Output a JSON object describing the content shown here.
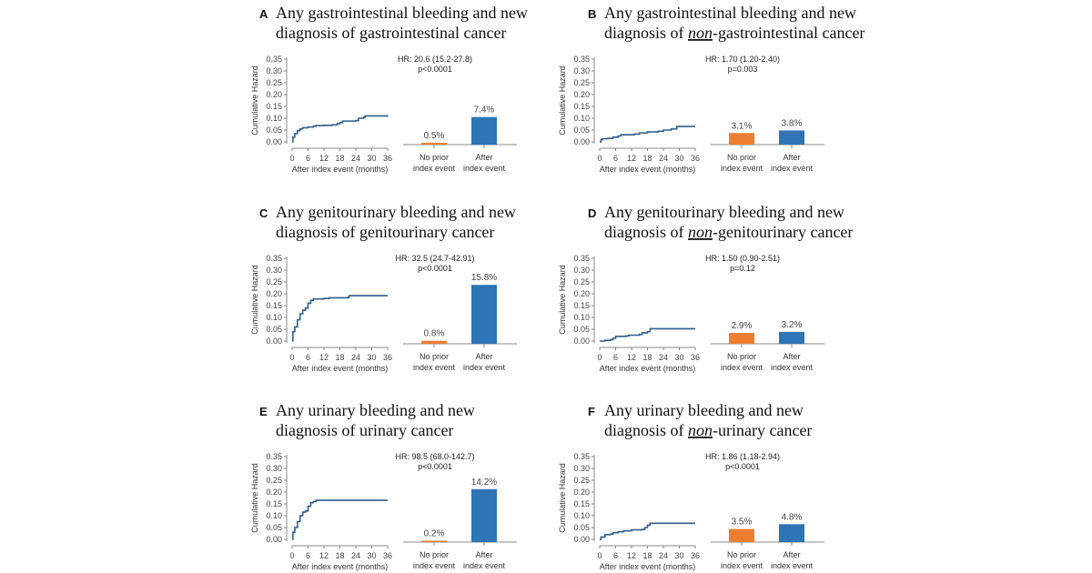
{
  "colors": {
    "curve": "#2f5f8a",
    "no_prior_bar": "#ed7d31",
    "after_bar": "#2e75b6",
    "axis": "#888888"
  },
  "chart_data": [
    {
      "panel": "A",
      "type": "line+bar",
      "title": {
        "line1": "Any gastrointestinal bleeding and new",
        "line2_prefix": "diagnosis of gastrointestinal cancer",
        "line2_em": "",
        "line2_suffix": ""
      },
      "ylabel": "Cumulative Hazard",
      "xlabel": "After index event (months)",
      "yticks": [
        "0.00",
        "0.05",
        "0.10",
        "0.15",
        "0.20",
        "0.25",
        "0.30",
        "0.35"
      ],
      "ylim": [
        0,
        0.35
      ],
      "xticks": [
        "0",
        "6",
        "12",
        "18",
        "24",
        "30",
        "36"
      ],
      "xlim": [
        0,
        36
      ],
      "curve": [
        [
          0,
          0
        ],
        [
          0.3,
          0.02
        ],
        [
          1,
          0.035
        ],
        [
          2,
          0.048
        ],
        [
          3,
          0.055
        ],
        [
          4,
          0.06
        ],
        [
          6,
          0.063
        ],
        [
          8,
          0.066
        ],
        [
          9,
          0.069
        ],
        [
          12,
          0.07
        ],
        [
          15,
          0.072
        ],
        [
          17,
          0.077
        ],
        [
          18,
          0.082
        ],
        [
          19,
          0.088
        ],
        [
          24,
          0.09
        ],
        [
          25,
          0.1
        ],
        [
          27,
          0.104
        ],
        [
          27.5,
          0.11
        ],
        [
          36,
          0.112
        ]
      ],
      "hr": "HR: 20.6 (15.2-27.8)",
      "p": "p<0.0001",
      "categories": [
        [
          "No prior",
          "index event"
        ],
        [
          "After",
          "index event"
        ]
      ],
      "values": [
        0.5,
        7.4
      ],
      "value_labels": [
        "0.5%",
        "7.4%"
      ]
    },
    {
      "panel": "B",
      "type": "line+bar",
      "title": {
        "line1": "Any gastrointestinal bleeding and new",
        "line2_prefix": "diagnosis of ",
        "line2_em": "non",
        "line2_suffix": "-gastrointestinal cancer"
      },
      "ylabel": "Cumulative Hazard",
      "xlabel": "After index event (months)",
      "yticks": [
        "0.00",
        "0.05",
        "0.10",
        "0.15",
        "0.20",
        "0.25",
        "0.30",
        "0.35"
      ],
      "ylim": [
        0,
        0.35
      ],
      "xticks": [
        "0",
        "6",
        "12",
        "18",
        "24",
        "30",
        "36"
      ],
      "xlim": [
        0,
        36
      ],
      "curve": [
        [
          0,
          0
        ],
        [
          0.5,
          0.01
        ],
        [
          1,
          0.013
        ],
        [
          3,
          0.015
        ],
        [
          5,
          0.02
        ],
        [
          7,
          0.025
        ],
        [
          8,
          0.03
        ],
        [
          13,
          0.033
        ],
        [
          15,
          0.038
        ],
        [
          18,
          0.042
        ],
        [
          22,
          0.045
        ],
        [
          24,
          0.05
        ],
        [
          27,
          0.055
        ],
        [
          29,
          0.065
        ],
        [
          36,
          0.065
        ]
      ],
      "hr": "HR: 1.70 (1.20-2.40)",
      "p": "p=0.003",
      "categories": [
        [
          "No prior",
          "index event"
        ],
        [
          "After",
          "index event"
        ]
      ],
      "values": [
        3.1,
        3.8
      ],
      "value_labels": [
        "3.1%",
        "3.8%"
      ]
    },
    {
      "panel": "C",
      "type": "line+bar",
      "title": {
        "line1": "Any genitourinary bleeding and new",
        "line2_prefix": "diagnosis of genitourinary cancer",
        "line2_em": "",
        "line2_suffix": ""
      },
      "ylabel": "Cumulative Hazard",
      "xlabel": "After index event (months)",
      "yticks": [
        "0.00",
        "0.05",
        "0.10",
        "0.15",
        "0.20",
        "0.25",
        "0.30",
        "0.35"
      ],
      "ylim": [
        0,
        0.35
      ],
      "xticks": [
        "0",
        "6",
        "12",
        "18",
        "24",
        "30",
        "36"
      ],
      "xlim": [
        0,
        36
      ],
      "curve": [
        [
          0,
          0
        ],
        [
          0.3,
          0.04
        ],
        [
          1,
          0.06
        ],
        [
          2,
          0.09
        ],
        [
          3,
          0.115
        ],
        [
          4,
          0.13
        ],
        [
          5,
          0.14
        ],
        [
          6,
          0.16
        ],
        [
          7,
          0.172
        ],
        [
          8,
          0.178
        ],
        [
          12,
          0.18
        ],
        [
          14,
          0.183
        ],
        [
          21,
          0.185
        ],
        [
          21.5,
          0.192
        ],
        [
          36,
          0.192
        ]
      ],
      "hr": "HR: 32.5 (24.7-42.91)",
      "p": "p<0.0001",
      "categories": [
        [
          "No prior",
          "index event"
        ],
        [
          "After",
          "index event"
        ]
      ],
      "values": [
        0.8,
        15.8
      ],
      "value_labels": [
        "0.8%",
        "15.8%"
      ]
    },
    {
      "panel": "D",
      "type": "line+bar",
      "title": {
        "line1": "Any genitourinary bleeding and new",
        "line2_prefix": "diagnosis of ",
        "line2_em": "non",
        "line2_suffix": "-genitourinary cancer"
      },
      "ylabel": "Cumulative Hazard",
      "xlabel": "After index event (months)",
      "yticks": [
        "0.00",
        "0.05",
        "0.10",
        "0.15",
        "0.20",
        "0.25",
        "0.30",
        "0.35"
      ],
      "ylim": [
        0,
        0.35
      ],
      "xticks": [
        "0",
        "6",
        "12",
        "18",
        "24",
        "30",
        "36"
      ],
      "xlim": [
        0,
        36
      ],
      "curve": [
        [
          0,
          0
        ],
        [
          2,
          0.003
        ],
        [
          4,
          0.006
        ],
        [
          5,
          0.012
        ],
        [
          6,
          0.02
        ],
        [
          10,
          0.022
        ],
        [
          11,
          0.025
        ],
        [
          15,
          0.028
        ],
        [
          16,
          0.035
        ],
        [
          18,
          0.04
        ],
        [
          19,
          0.052
        ],
        [
          36,
          0.052
        ]
      ],
      "hr": "HR: 1.50 (0.90-2.51)",
      "p": "p=0.12",
      "categories": [
        [
          "No prior",
          "index event"
        ],
        [
          "After",
          "index event"
        ]
      ],
      "values": [
        2.9,
        3.2
      ],
      "value_labels": [
        "2.9%",
        "3.2%"
      ]
    },
    {
      "panel": "E",
      "type": "line+bar",
      "title": {
        "line1": "Any urinary bleeding and new",
        "line2_prefix": "diagnosis of urinary cancer",
        "line2_em": "",
        "line2_suffix": ""
      },
      "ylabel": "Cumulative Hazard",
      "xlabel": "After index event (months)",
      "yticks": [
        "0.00",
        "0.05",
        "0.10",
        "0.15",
        "0.20",
        "0.25",
        "0.30",
        "0.35"
      ],
      "ylim": [
        0,
        0.35
      ],
      "xticks": [
        "0",
        "6",
        "12",
        "18",
        "24",
        "30",
        "36"
      ],
      "xlim": [
        0,
        36
      ],
      "curve": [
        [
          0,
          0
        ],
        [
          0.3,
          0.03
        ],
        [
          1,
          0.05
        ],
        [
          2,
          0.075
        ],
        [
          3,
          0.1
        ],
        [
          4,
          0.115
        ],
        [
          5,
          0.12
        ],
        [
          6,
          0.14
        ],
        [
          7,
          0.155
        ],
        [
          8,
          0.16
        ],
        [
          9,
          0.165
        ],
        [
          36,
          0.165
        ]
      ],
      "hr": "HR: 98.5 (68.0-142.7)",
      "p": "p<0.0001",
      "categories": [
        [
          "No prior",
          "index event"
        ],
        [
          "After",
          "index event"
        ]
      ],
      "values": [
        0.2,
        14.2
      ],
      "value_labels": [
        "0.2%",
        "14.2%"
      ]
    },
    {
      "panel": "F",
      "type": "line+bar",
      "title": {
        "line1": "Any urinary bleeding and new",
        "line2_prefix": "diagnosis of ",
        "line2_em": "non",
        "line2_suffix": "-urinary cancer"
      },
      "ylabel": "Cumulative Hazard",
      "xlabel": "After index event (months)",
      "yticks": [
        "0.00",
        "0.05",
        "0.10",
        "0.15",
        "0.20",
        "0.25",
        "0.30",
        "0.35"
      ],
      "ylim": [
        0,
        0.35
      ],
      "xticks": [
        "0",
        "6",
        "12",
        "18",
        "24",
        "30",
        "36"
      ],
      "xlim": [
        0,
        36
      ],
      "curve": [
        [
          0,
          0
        ],
        [
          0.5,
          0.01
        ],
        [
          2,
          0.02
        ],
        [
          4,
          0.022
        ],
        [
          5,
          0.028
        ],
        [
          7,
          0.032
        ],
        [
          9,
          0.036
        ],
        [
          12,
          0.04
        ],
        [
          16,
          0.042
        ],
        [
          17,
          0.05
        ],
        [
          18,
          0.06
        ],
        [
          19,
          0.068
        ],
        [
          36,
          0.068
        ]
      ],
      "hr": "HR: 1.86 (1.18-2.94)",
      "p": "p<0.0001",
      "categories": [
        [
          "No prior",
          "index event"
        ],
        [
          "After",
          "index event"
        ]
      ],
      "values": [
        3.5,
        4.8
      ],
      "value_labels": [
        "3.5%",
        "4.8%"
      ]
    }
  ]
}
